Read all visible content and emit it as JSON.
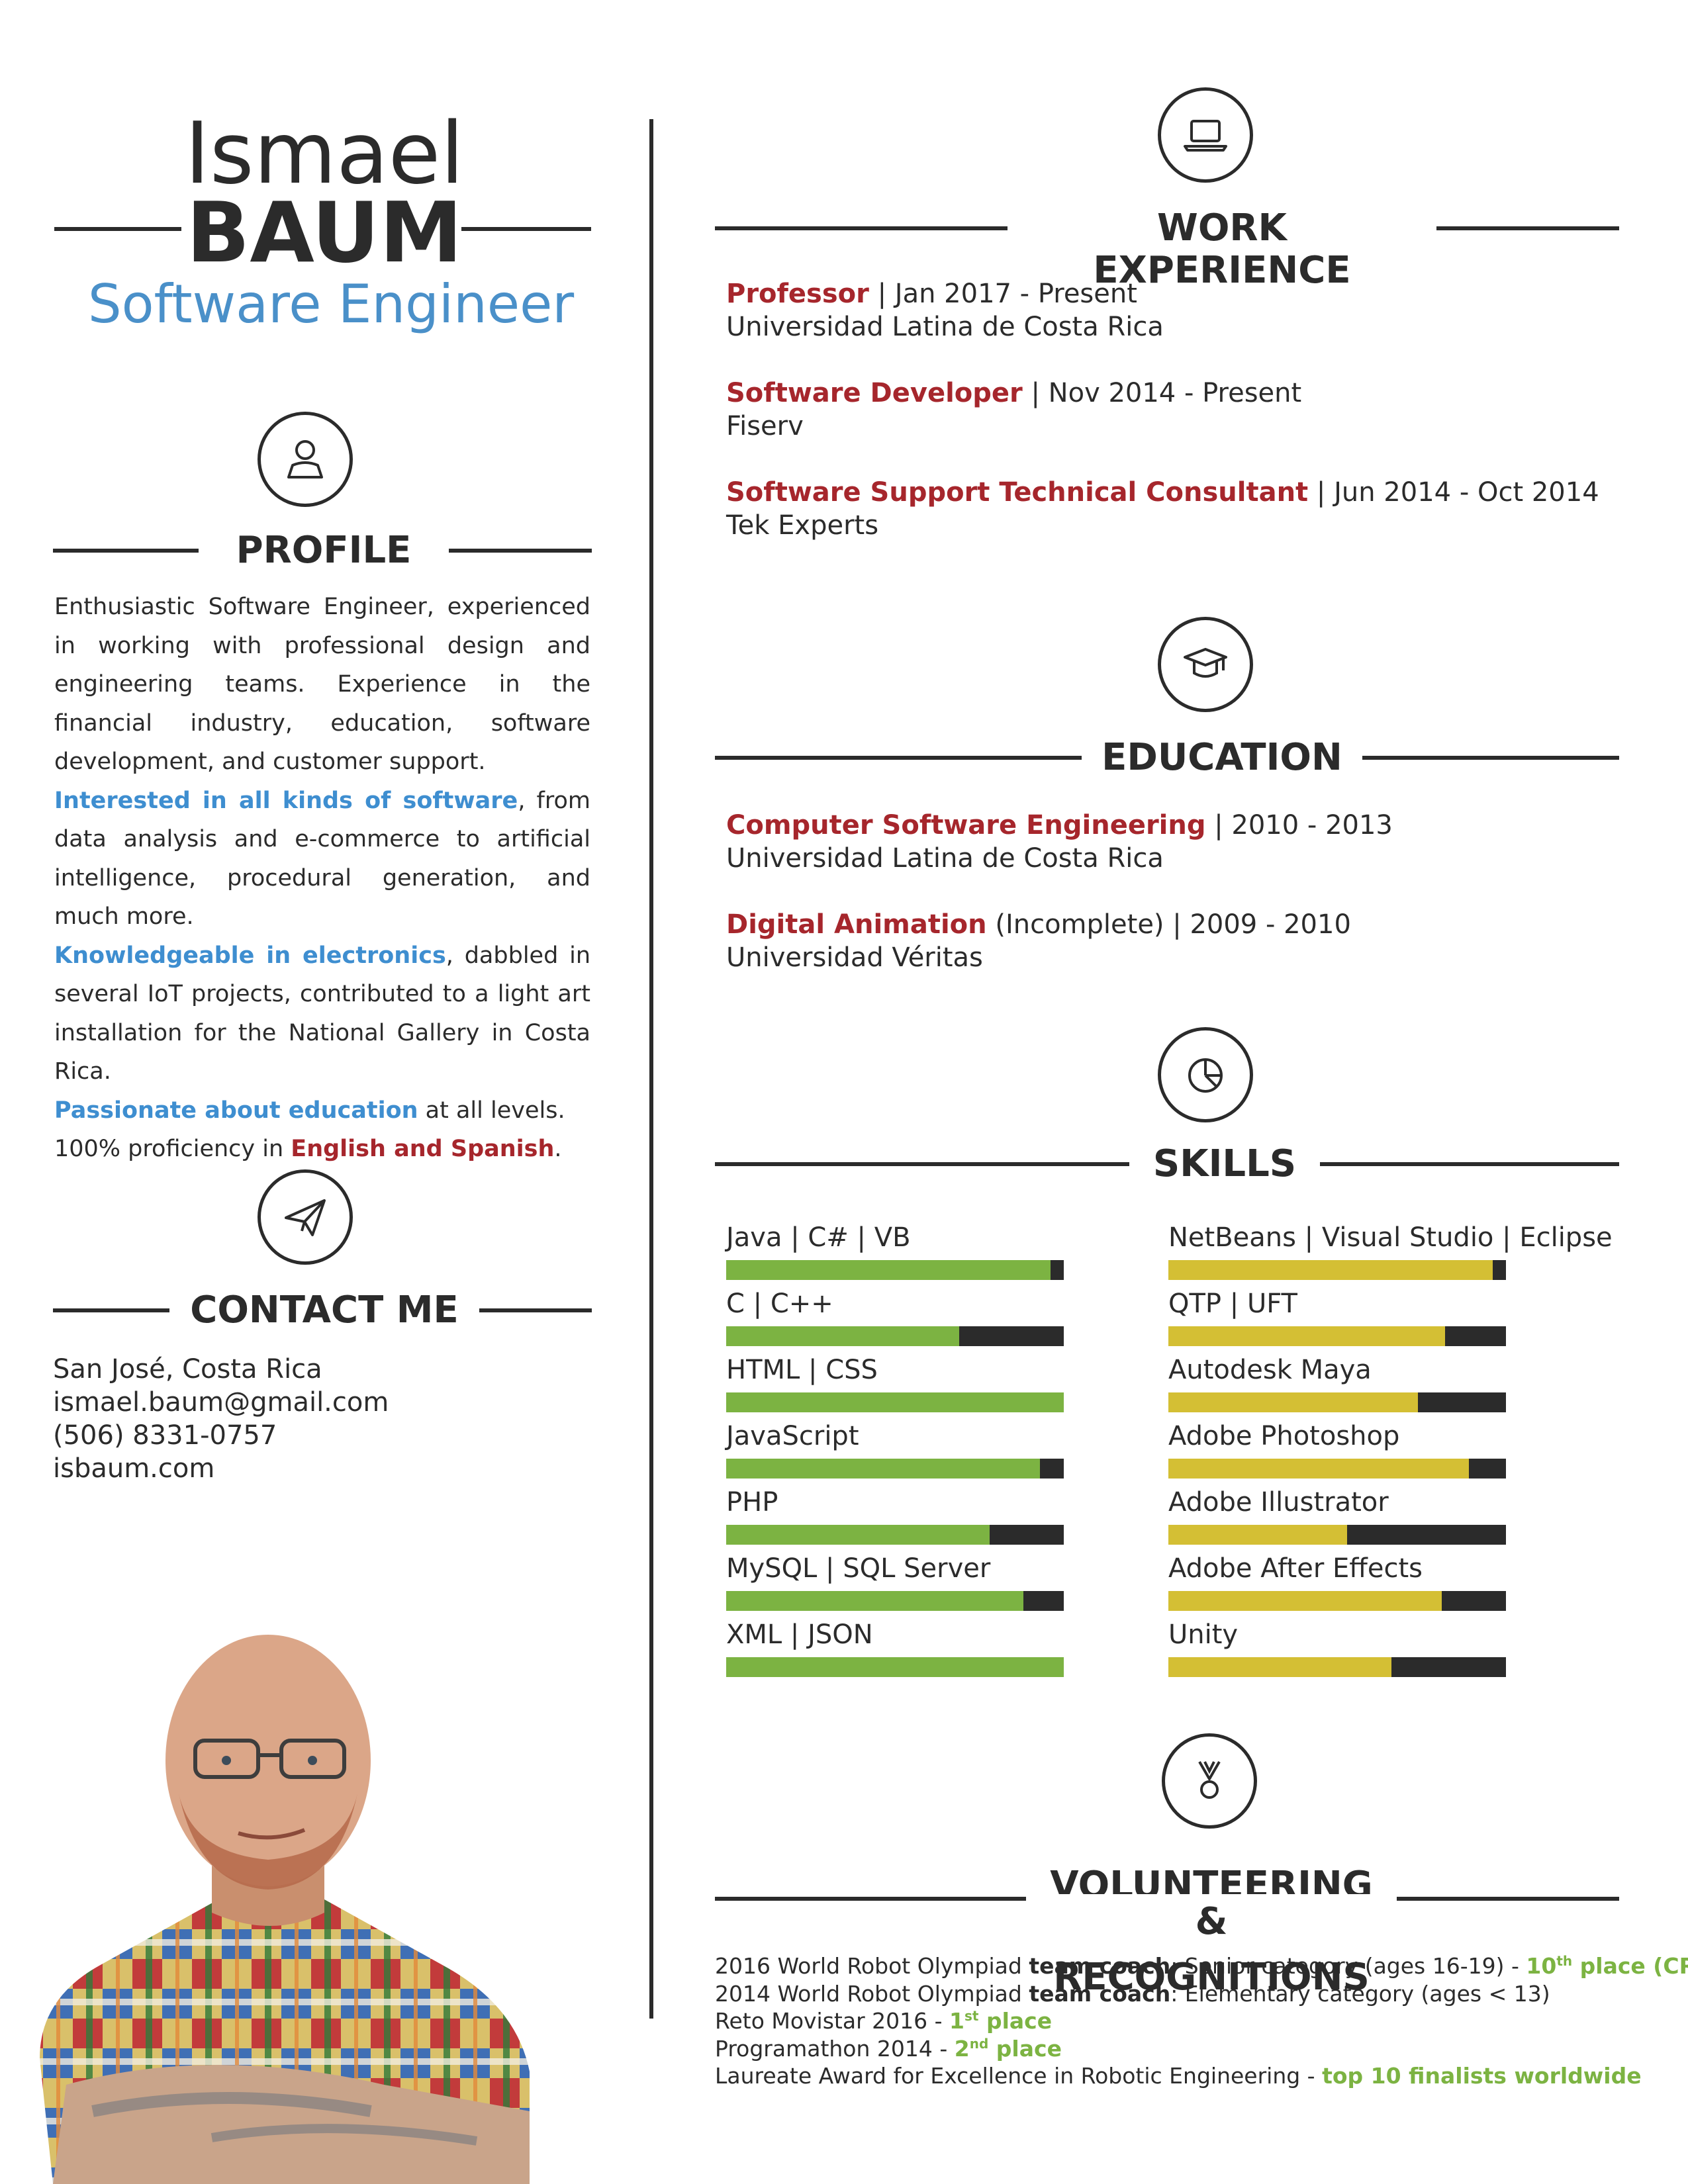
{
  "header": {
    "first_name": "Ismael",
    "last_name": "BAUM",
    "role": "Software Engineer"
  },
  "profile": {
    "title": "PROFILE",
    "icon": "user-icon",
    "p1": "Enthusiastic Software Engineer, experienced in working with professional design and engineering teams. Experience in the financial industry, education, software development, and customer support.",
    "p2_highlight": "Interested in all kinds of software",
    "p2_rest": ", from data analysis and e-commerce to artificial intelligence, procedural generation, and much more.",
    "p3_highlight": "Knowledgeable in electronics",
    "p3_rest": ", dabbled in several IoT projects, contributed to a light art installation for the National Gallery in Costa Rica.",
    "p4_highlight": "Passionate about education",
    "p4_rest": " at all levels.",
    "p5_pre": "100% proficiency in ",
    "p5_highlight": "English and Spanish",
    "p5_post": "."
  },
  "contact": {
    "title": "CONTACT ME",
    "icon": "paper-plane-icon",
    "location": "San José, Costa Rica",
    "email": "ismael.baum@gmail.com",
    "phone": "(506) 8331-0757",
    "website": "isbaum.com"
  },
  "work": {
    "title": "WORK EXPERIENCE",
    "icon": "laptop-icon",
    "items": [
      {
        "title": "Professor",
        "dates": " | Jan 2017 - Present",
        "org": "Universidad Latina de Costa Rica"
      },
      {
        "title": "Software Developer",
        "dates": " | Nov 2014 - Present",
        "org": "Fiserv"
      },
      {
        "title": "Software Support Technical Consultant",
        "dates": " | Jun 2014 - Oct 2014",
        "org": "Tek Experts"
      }
    ]
  },
  "education": {
    "title": "EDUCATION",
    "icon": "graduation-cap-icon",
    "items": [
      {
        "title": "Computer Software Engineering",
        "dates": " | 2010 - 2013",
        "org": "Universidad Latina de Costa Rica"
      },
      {
        "title": "Digital Animation",
        "dates": " (Incomplete) | 2009 - 2010",
        "org": "Universidad Véritas"
      }
    ]
  },
  "skills": {
    "title": "SKILLS",
    "icon": "pie-chart-icon",
    "colors": {
      "left": "#7cb342",
      "right": "#d4bf34",
      "track": "#2b2b2b"
    },
    "left": [
      {
        "name": "Java | C# | VB",
        "level": 0.96
      },
      {
        "name": "C | C++",
        "level": 0.69
      },
      {
        "name": "HTML | CSS",
        "level": 1.0
      },
      {
        "name": "JavaScript",
        "level": 0.93
      },
      {
        "name": "PHP",
        "level": 0.78
      },
      {
        "name": "MySQL | SQL Server",
        "level": 0.88
      },
      {
        "name": "XML | JSON",
        "level": 1.0
      }
    ],
    "right": [
      {
        "name": "NetBeans | Visual Studio | Eclipse",
        "level": 0.96
      },
      {
        "name": "QTP | UFT",
        "level": 0.82
      },
      {
        "name": "Autodesk Maya",
        "level": 0.74
      },
      {
        "name": "Adobe Photoshop",
        "level": 0.89
      },
      {
        "name": "Adobe Illustrator",
        "level": 0.53
      },
      {
        "name": "Adobe After Effects",
        "level": 0.81
      },
      {
        "name": "Unity",
        "level": 0.66
      }
    ]
  },
  "volunteering": {
    "title_line1": "VOLUNTEERING",
    "title_line2": "& RECOGNITIONS",
    "icon": "medal-icon",
    "l1_pre": "2016 World Robot Olympiad ",
    "l1_bold": "team coach",
    "l1_mid": ": Senior category (ages 16-19) - ",
    "l1_num": "10",
    "l1_sup": "th",
    "l1_award": " place (CR)",
    "l2_pre": "2014 World Robot Olympiad ",
    "l2_bold": "team coach",
    "l2_mid": ": Elementary category (ages < 13)",
    "l3_pre": "Reto Movistar 2016 - ",
    "l3_num": "1",
    "l3_sup": "st",
    "l3_award": " place",
    "l4_pre": "Programathon 2014 - ",
    "l4_num": "2",
    "l4_sup": "nd",
    "l4_award": " place",
    "l5_pre": "Laureate Award for Excellence in Robotic Engineering - ",
    "l5_award": "top 10 finalists worldwide"
  }
}
